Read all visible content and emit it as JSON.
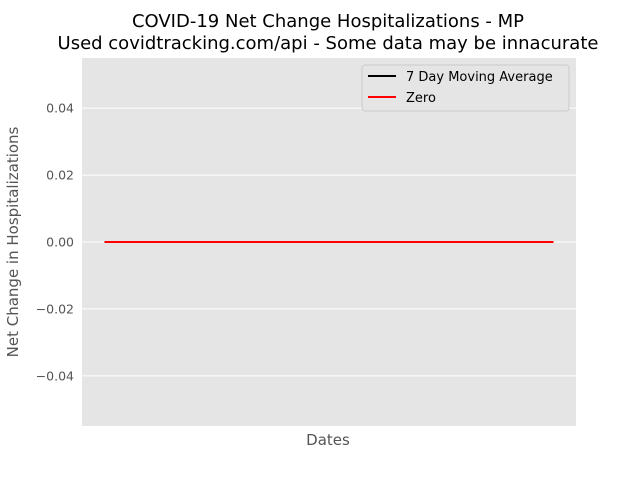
{
  "chart_data": {
    "type": "line",
    "title": "COVID-19 Net Change Hospitalizations - MP",
    "subtitle": "Used covidtracking.com/api - Some data may be innacurate",
    "xlabel": "Dates",
    "ylabel": "Net Change in Hospitalizations",
    "ylim": [
      -0.055,
      0.055
    ],
    "yticks": [
      -0.04,
      -0.02,
      0.0,
      0.02,
      0.04
    ],
    "ytick_labels": [
      "−0.04",
      "−0.02",
      "0.00",
      "0.02",
      "0.04"
    ],
    "grid": true,
    "legend_position": "top-right",
    "series": [
      {
        "name": "7 Day Moving Average",
        "color": "#000000",
        "values": []
      },
      {
        "name": "Zero",
        "color": "#ff0000",
        "values": [
          0,
          0
        ]
      }
    ]
  }
}
